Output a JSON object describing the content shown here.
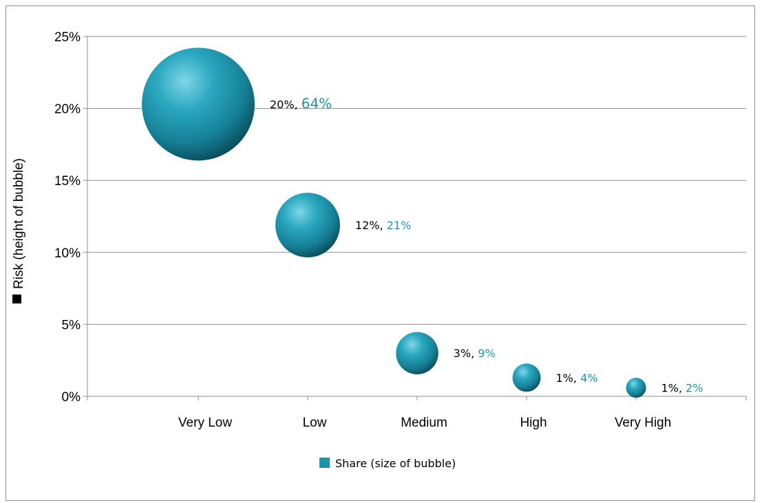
{
  "chart_data": {
    "type": "bubble",
    "categories": [
      "Very Low",
      "Low",
      "Medium",
      "High",
      "Very High"
    ],
    "points": [
      {
        "category": "Very Low",
        "risk": 20.3,
        "share": 64,
        "risk_label": "20%",
        "share_label": "64%"
      },
      {
        "category": "Low",
        "risk": 11.9,
        "share": 21,
        "risk_label": "12%",
        "share_label": "21%"
      },
      {
        "category": "Medium",
        "risk": 3.0,
        "share": 9,
        "risk_label": "3%",
        "share_label": "9%"
      },
      {
        "category": "High",
        "risk": 1.3,
        "share": 4,
        "risk_label": "1%",
        "share_label": "4%"
      },
      {
        "category": "Very High",
        "risk": 0.6,
        "share": 2,
        "risk_label": "1%",
        "share_label": "2%"
      }
    ],
    "ylabel": "Risk (height of bubble)",
    "legend_label": "Share (size of bubble)",
    "ylim": [
      0,
      25
    ],
    "yticks": [
      "0%",
      "5%",
      "10%",
      "15%",
      "20%",
      "25%"
    ],
    "grid": true,
    "legend_position": "bottom",
    "colors": {
      "bubble": "#1b95ac",
      "share_label": "#1b95ac",
      "risk_label": "#000000",
      "risk_marker": "#000000",
      "legend_marker": "#1b95ac"
    }
  }
}
